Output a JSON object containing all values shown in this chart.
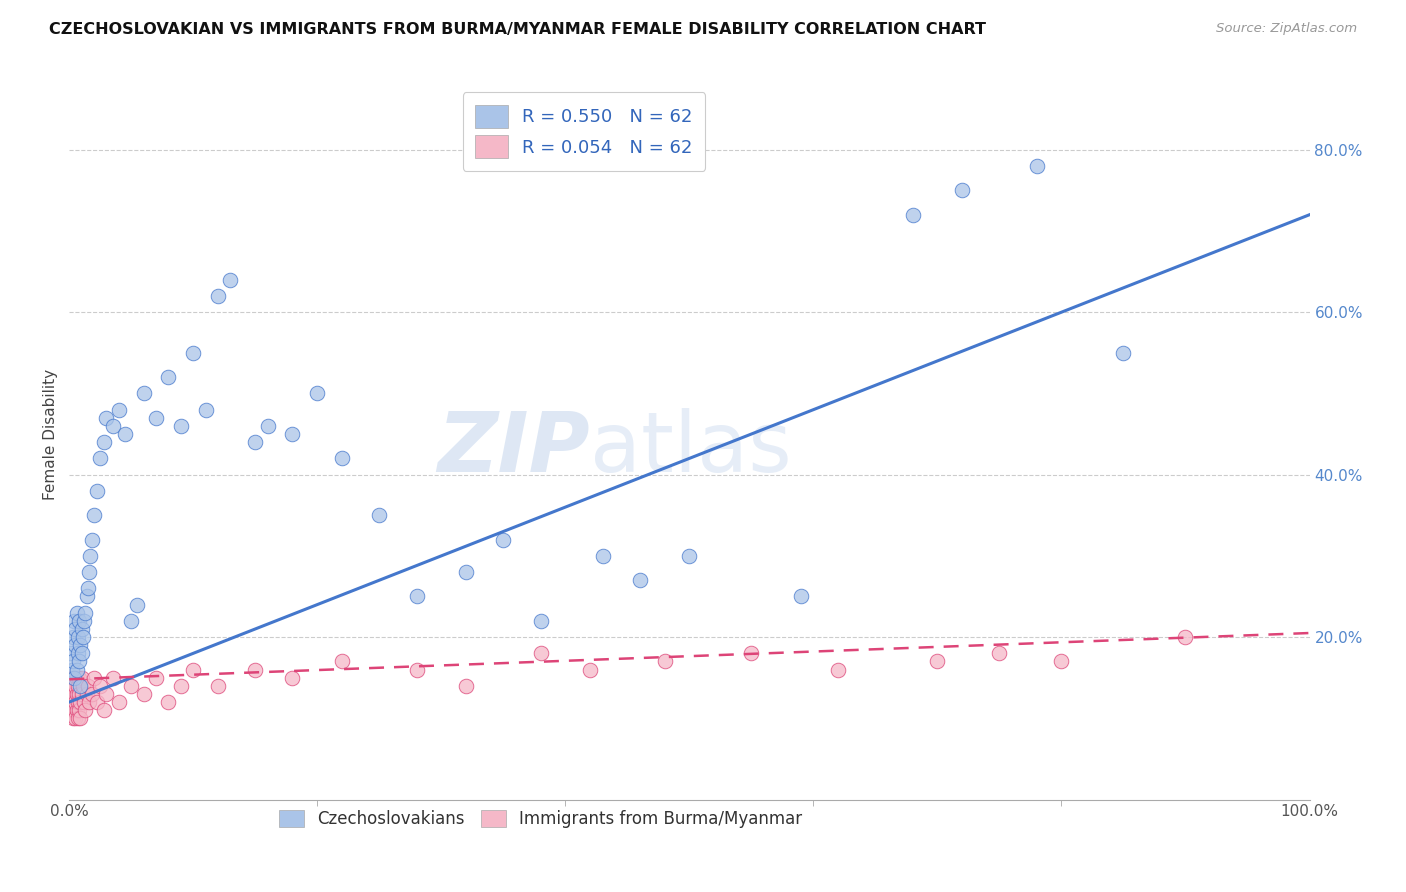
{
  "title": "CZECHOSLOVAKIAN VS IMMIGRANTS FROM BURMA/MYANMAR FEMALE DISABILITY CORRELATION CHART",
  "source": "Source: ZipAtlas.com",
  "ylabel": "Female Disability",
  "legend_label1": "Czechoslovakians",
  "legend_label2": "Immigrants from Burma/Myanmar",
  "R1": 0.55,
  "N1": 62,
  "R2": 0.054,
  "N2": 62,
  "color1": "#aac4e8",
  "color2": "#f5b8c8",
  "trend_color1": "#4477cc",
  "trend_color2": "#dd4477",
  "xlim": [
    0,
    1
  ],
  "ylim": [
    0,
    0.9
  ],
  "xtick_left": 0.0,
  "xtick_right": 1.0,
  "yticks_right": [
    0.2,
    0.4,
    0.6,
    0.8
  ],
  "watermark": "ZIPatlas",
  "blue_trend_x0": 0.0,
  "blue_trend_y0": 0.12,
  "blue_trend_x1": 1.0,
  "blue_trend_y1": 0.72,
  "pink_trend_x0": 0.0,
  "pink_trend_y0": 0.148,
  "pink_trend_x1": 1.0,
  "pink_trend_y1": 0.205,
  "blue_scatter_x": [
    0.001,
    0.002,
    0.003,
    0.003,
    0.004,
    0.004,
    0.005,
    0.005,
    0.006,
    0.006,
    0.007,
    0.007,
    0.008,
    0.008,
    0.009,
    0.009,
    0.01,
    0.01,
    0.011,
    0.012,
    0.013,
    0.014,
    0.015,
    0.016,
    0.017,
    0.018,
    0.02,
    0.022,
    0.025,
    0.028,
    0.03,
    0.035,
    0.04,
    0.045,
    0.05,
    0.055,
    0.06,
    0.07,
    0.08,
    0.09,
    0.1,
    0.11,
    0.12,
    0.13,
    0.15,
    0.16,
    0.18,
    0.2,
    0.22,
    0.25,
    0.28,
    0.32,
    0.35,
    0.38,
    0.43,
    0.46,
    0.5,
    0.59,
    0.68,
    0.72,
    0.78,
    0.85
  ],
  "blue_scatter_y": [
    0.18,
    0.16,
    0.17,
    0.2,
    0.22,
    0.15,
    0.19,
    0.21,
    0.16,
    0.23,
    0.18,
    0.2,
    0.17,
    0.22,
    0.19,
    0.14,
    0.21,
    0.18,
    0.2,
    0.22,
    0.23,
    0.25,
    0.26,
    0.28,
    0.3,
    0.32,
    0.35,
    0.38,
    0.42,
    0.44,
    0.47,
    0.46,
    0.48,
    0.45,
    0.22,
    0.24,
    0.5,
    0.47,
    0.52,
    0.46,
    0.55,
    0.48,
    0.62,
    0.64,
    0.44,
    0.46,
    0.45,
    0.5,
    0.42,
    0.35,
    0.25,
    0.28,
    0.32,
    0.22,
    0.3,
    0.27,
    0.3,
    0.25,
    0.72,
    0.75,
    0.78,
    0.55
  ],
  "pink_scatter_x": [
    0.001,
    0.001,
    0.002,
    0.002,
    0.002,
    0.003,
    0.003,
    0.003,
    0.004,
    0.004,
    0.004,
    0.005,
    0.005,
    0.005,
    0.006,
    0.006,
    0.006,
    0.007,
    0.007,
    0.007,
    0.008,
    0.008,
    0.008,
    0.009,
    0.009,
    0.01,
    0.01,
    0.011,
    0.012,
    0.013,
    0.014,
    0.015,
    0.016,
    0.018,
    0.02,
    0.022,
    0.025,
    0.028,
    0.03,
    0.035,
    0.04,
    0.05,
    0.06,
    0.07,
    0.08,
    0.09,
    0.1,
    0.12,
    0.15,
    0.18,
    0.22,
    0.28,
    0.32,
    0.38,
    0.42,
    0.48,
    0.55,
    0.62,
    0.7,
    0.75,
    0.8,
    0.9
  ],
  "pink_scatter_y": [
    0.12,
    0.14,
    0.11,
    0.13,
    0.15,
    0.1,
    0.12,
    0.14,
    0.11,
    0.13,
    0.15,
    0.1,
    0.12,
    0.14,
    0.11,
    0.13,
    0.15,
    0.1,
    0.12,
    0.14,
    0.11,
    0.13,
    0.15,
    0.1,
    0.12,
    0.13,
    0.15,
    0.14,
    0.12,
    0.11,
    0.13,
    0.14,
    0.12,
    0.13,
    0.15,
    0.12,
    0.14,
    0.11,
    0.13,
    0.15,
    0.12,
    0.14,
    0.13,
    0.15,
    0.12,
    0.14,
    0.16,
    0.14,
    0.16,
    0.15,
    0.17,
    0.16,
    0.14,
    0.18,
    0.16,
    0.17,
    0.18,
    0.16,
    0.17,
    0.18,
    0.17,
    0.2
  ]
}
